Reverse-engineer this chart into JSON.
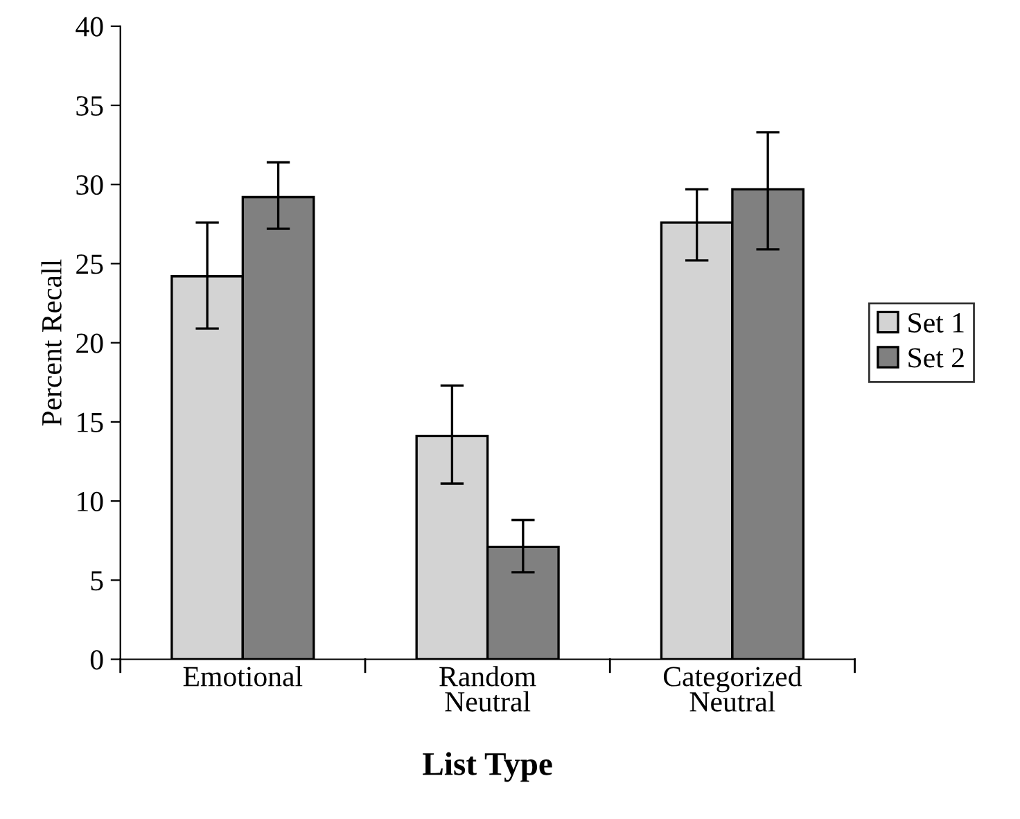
{
  "chart_data": {
    "type": "bar",
    "xlabel": "List Type",
    "ylabel": "Percent Recall",
    "categories": [
      "Emotional",
      "Random\nNeutral",
      "Categorized\nNeutral"
    ],
    "series": [
      {
        "name": "Set 1",
        "color": "#d3d3d3",
        "values": [
          24.2,
          14.1,
          27.6
        ],
        "errors": [
          [
            20.9,
            27.6
          ],
          [
            11.1,
            17.3
          ],
          [
            25.2,
            29.7
          ]
        ]
      },
      {
        "name": "Set 2",
        "color": "#808080",
        "values": [
          29.2,
          7.1,
          29.7
        ],
        "errors": [
          [
            27.2,
            31.4
          ],
          [
            5.5,
            8.8
          ],
          [
            25.9,
            33.3
          ]
        ]
      }
    ],
    "ylim": [
      0,
      40
    ],
    "yticks": [
      0,
      5,
      10,
      15,
      20,
      25,
      30,
      35,
      40
    ],
    "grid": false,
    "legend": "right"
  }
}
